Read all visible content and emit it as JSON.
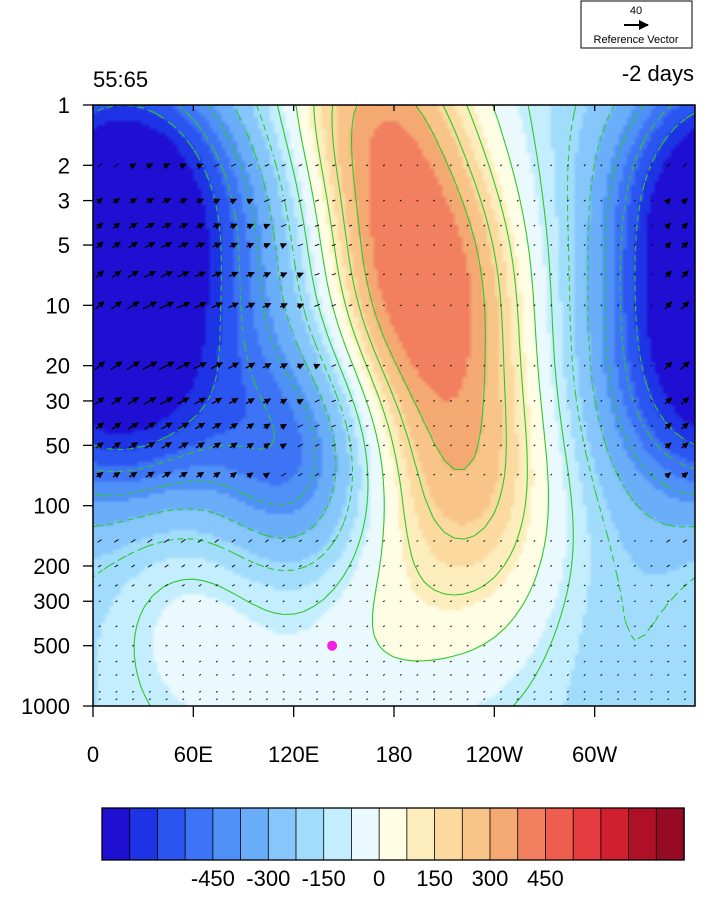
{
  "chart_data": {
    "type": "heatmap",
    "title_left": "55:65",
    "title_right": "-2 days",
    "reference_vector": {
      "magnitude": "40",
      "label": "Reference Vector"
    },
    "x_tick_labels": [
      "0",
      "60E",
      "120E",
      "180",
      "120W",
      "60W"
    ],
    "x_ticks_deg": [
      0,
      60,
      120,
      180,
      240,
      300
    ],
    "x_range_deg": [
      0,
      360
    ],
    "y_tick_labels": [
      "1",
      "2",
      "3",
      "5",
      "10",
      "20",
      "30",
      "50",
      "100",
      "200",
      "300",
      "500",
      "1000"
    ],
    "y_ticks": [
      1,
      2,
      3,
      5,
      10,
      20,
      30,
      50,
      100,
      200,
      300,
      500,
      1000
    ],
    "y_range": [
      1,
      1000
    ],
    "y_scale": "log",
    "y_reversed": true,
    "colorbar": {
      "levels": [
        -525,
        -450,
        -375,
        -300,
        -225,
        -150,
        -75,
        0,
        75,
        150,
        225,
        300,
        375,
        450,
        525
      ],
      "tick_labels": [
        "-450",
        "-300",
        "-150",
        "0",
        "150",
        "300",
        "450"
      ],
      "tick_values": [
        -450,
        -300,
        -150,
        0,
        150,
        300,
        450
      ],
      "colors": [
        "#1e0fd2",
        "#1f33e6",
        "#2b55f0",
        "#3d73f5",
        "#4f91f7",
        "#6aaefa",
        "#86c6fb",
        "#a2dcfc",
        "#c4eefd",
        "#e9f9fe",
        "#fffde4",
        "#fdedbc",
        "#fbd99f",
        "#f8c487",
        "#f4a872",
        "#f28060",
        "#ee5e4f",
        "#e53a3e",
        "#d01f2e",
        "#b00f28",
        "#960a24"
      ]
    },
    "anomaly_centers": [
      {
        "lon": 20,
        "lev": 20,
        "value": -560
      },
      {
        "lon": 25,
        "lev": 3,
        "value": -520
      },
      {
        "lon": 120,
        "lev": 60,
        "value": -380
      },
      {
        "lon": 118,
        "lev": 3,
        "value": -200
      },
      {
        "lon": 355,
        "lev": 3,
        "value": -220
      },
      {
        "lon": 320,
        "lev": 30,
        "value": -120
      },
      {
        "lon": 300,
        "lev": 400,
        "value": -100
      },
      {
        "lon": 70,
        "lev": 300,
        "value": 150
      },
      {
        "lon": 195,
        "lev": 8,
        "value": 560
      },
      {
        "lon": 165,
        "lev": 1.2,
        "value": 480
      },
      {
        "lon": 220,
        "lev": 60,
        "value": 360
      },
      {
        "lon": 260,
        "lev": 300,
        "value": 120
      },
      {
        "lon": 165,
        "lev": 350,
        "value": 140
      }
    ],
    "marker": {
      "lon": 143,
      "lev": 500,
      "color": "#f01ee6"
    },
    "contour_color": "#2ec82e",
    "vector_color": "#000000"
  }
}
